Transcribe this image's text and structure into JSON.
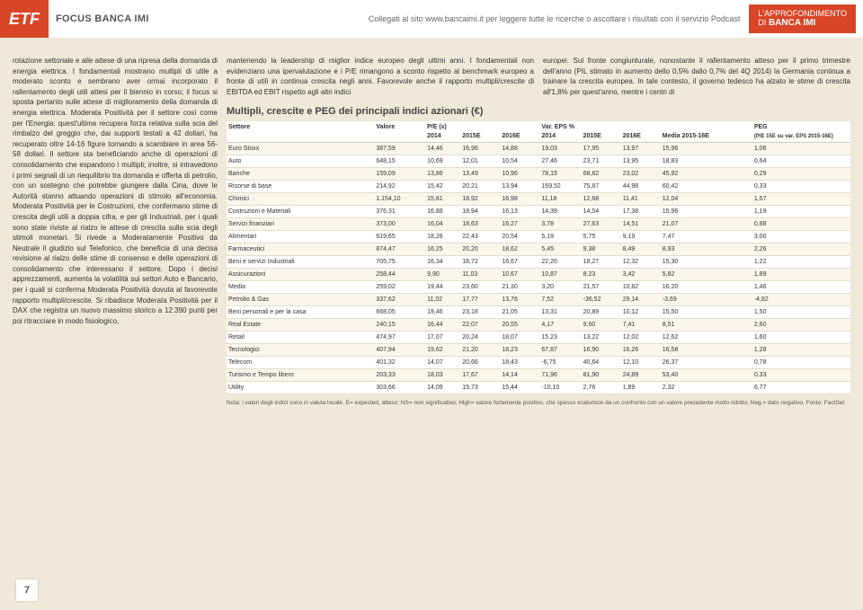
{
  "header": {
    "logo": "ETF",
    "focus": "FOCUS BANCA IMI",
    "mid": "Collegati al sito www.bancaimi.it per leggere tutte le ricerche o ascoltare i risultati con il servizio Podcast",
    "right1": "L'APPROFONDIMENTO",
    "right2": "DI",
    "right3": "BANCA IMI"
  },
  "pageNumber": "7",
  "body": {
    "left": "rotazione settoriale e alle attese di una ripresa della domanda di energia elettrica. I fondamentali mostrano multipli di utile a moderato sconto e sembrano aver ormai incorporato il rallentamento degli utili attesi per il biennio in corso; il focus si sposta pertanto sulle attese di miglioramento della domanda di energia elettrica. Moderata Positività per il settore così come per l'Energia: quest'ultima recupera forza relativa sulla scia del rimbalzo del greggio che, dai supporti testati a 42 dollari, ha recuperato oltre 14-16 figure tornando a scambiare in area 56-58 dollari. Il settore sta beneficiando anche di operazioni di consolidamento che espandono i multipli; inoltre, si intravedono i primi segnali di un riequilibrio tra domanda e offerta di petrolio, con un sostegno che potrebbe giungere dalla Cina, dove le Autorità stanno attuando operazioni di stimolo all'economia. Moderata Positività per le Costruzioni, che confermano stime di crescita degli utili a doppia cifra, e per gli Industriali, per i quali sono state riviste al rialzo le attese di crescita sulla scia degli stimoli monetari. Si rivede a Moderatamente Positivo da Neutrale il giudizio sul Telefonico, che beneficia di una decisa revisione al rialzo delle stime di consenso e delle operazioni di consolidamento che interessano il settore. Dopo i decisi apprezzamenti, aumenta la volatilità sui settori Auto e Bancario, per i quali si conferma Moderata Positività dovuta al favorevole rapporto multipli/crescite.\nSi ribadisce Moderata Positività per il DAX che registra un nuovo massimo storico a 12.390 punti per poi ritracciare in modo fisiologico,",
    "mid": "mantenendo la leadership di miglior indice europeo degli ultimi anni. I fondamentali non evidenziano una ipervalutazione e i P/E rimangono a sconto rispetto al benchmark europeo a fronte di utili in continua crescita negli anni. Favorevole anche il rapporto multipli/crescite di EBITDA ed EBIT rispetto agli altri indici",
    "right": "europei. Sul fronte congiunturale, nonostante il rallentamento atteso per il primo trimestre dell'anno (PIL stimato in aumento dello 0,5% dallo 0,7% del 4Q 2014) la Germania continua a trainare la crescita europea. In tale contesto, il governo tedesco ha alzato le stime di crescita all'1,8% per quest'anno, mentre i centri di"
  },
  "table": {
    "title": "Multipli, crescite e PEG dei principali indici azionari (€)",
    "group1": "Settore",
    "group2": "Valore",
    "group3": "P/E (x)",
    "group4": "Var. EPS %",
    "group5": "PEG",
    "cols": [
      "",
      "",
      "2014",
      "2015E",
      "2016E",
      "2014",
      "2015E",
      "2016E",
      "Media 2015-16E",
      "(P/E 15E su var. EPS 2015-16E)"
    ],
    "rows": [
      [
        "Euro Stoxx",
        "387,59",
        "14,46",
        "16,96",
        "14,88",
        "19,03",
        "17,95",
        "13,97",
        "15,96",
        "1,06"
      ],
      [
        "Auto",
        "648,15",
        "10,69",
        "12,01",
        "10,54",
        "27,46",
        "23,71",
        "13,95",
        "18,83",
        "0,64"
      ],
      [
        "Banche",
        "159,09",
        "13,86",
        "13,49",
        "10,96",
        "78,15",
        "68,82",
        "23,02",
        "45,92",
        "0,29"
      ],
      [
        "Risorse di base",
        "214,92",
        "15,42",
        "20,21",
        "13,94",
        "169,52",
        "75,87",
        "44,98",
        "60,42",
        "0,33"
      ],
      [
        "Chimici",
        "1.154,10",
        "15,81",
        "18,92",
        "16,98",
        "11,18",
        "12,68",
        "11,41",
        "12,04",
        "1,57"
      ],
      [
        "Costruzioni e Materiali",
        "376,31",
        "16,88",
        "18,94",
        "16,13",
        "14,39",
        "14,54",
        "17,38",
        "15,96",
        "1,19"
      ],
      [
        "Servizi finanziari",
        "373,00",
        "16,04",
        "18,63",
        "16,27",
        "3,78",
        "27,63",
        "14,51",
        "21,07",
        "0,88"
      ],
      [
        "Alimentari",
        "619,65",
        "18,26",
        "22,43",
        "20,54",
        "5,19",
        "5,75",
        "9,19",
        "7,47",
        "3,00"
      ],
      [
        "Farmaceutici",
        "874,47",
        "16,25",
        "20,20",
        "18,62",
        "5,45",
        "9,38",
        "8,49",
        "8,93",
        "2,26"
      ],
      [
        "Beni e servizi Industriali",
        "705,75",
        "16,34",
        "18,72",
        "16,67",
        "22,20",
        "18,27",
        "12,32",
        "15,30",
        "1,22"
      ],
      [
        "Assicurazioni",
        "258,44",
        "9,90",
        "11,03",
        "10,67",
        "10,87",
        "8,23",
        "3,42",
        "5,82",
        "1,89"
      ],
      [
        "Media",
        "259,02",
        "19,44",
        "23,60",
        "21,30",
        "3,20",
        "21,57",
        "10,82",
        "16,20",
        "1,46"
      ],
      [
        "Petrolio & Gas",
        "337,62",
        "11,02",
        "17,77",
        "13,76",
        "7,52",
        "-36,52",
        "29,14",
        "-3,69",
        "-4,82"
      ],
      [
        "Beni personali e per la casa",
        "668,05",
        "19,46",
        "23,18",
        "21,05",
        "13,31",
        "20,89",
        "10,12",
        "15,50",
        "1,50"
      ],
      [
        "Real Estate",
        "240,15",
        "16,44",
        "22,07",
        "20,55",
        "4,17",
        "9,60",
        "7,41",
        "8,51",
        "2,60"
      ],
      [
        "Retail",
        "474,97",
        "17,07",
        "20,24",
        "18,07",
        "15,23",
        "13,22",
        "12,02",
        "12,62",
        "1,60"
      ],
      [
        "Tecnologici",
        "407,94",
        "19,62",
        "21,20",
        "18,23",
        "67,87",
        "16,90",
        "16,26",
        "16,58",
        "1,28"
      ],
      [
        "Telecom",
        "401,32",
        "14,07",
        "20,66",
        "18,43",
        "-6,75",
        "40,64",
        "12,10",
        "26,37",
        "0,78"
      ],
      [
        "Turismo e Tempo libero",
        "203,33",
        "18,03",
        "17,67",
        "14,14",
        "71,96",
        "81,90",
        "24,89",
        "53,40",
        "0,33"
      ],
      [
        "Utility",
        "303,66",
        "14,09",
        "15,73",
        "15,44",
        "-10,10",
        "2,76",
        "1,89",
        "2,32",
        "6,77"
      ]
    ],
    "note": "Nota: i valori degli indici sono in valuta locale. E= expected, atteso; NS= non significativo; High= valore fortemente positivo, che spesso scaturisce da un confronto con un valore precedente molto ridotto; Neg.= dato negativo. Fonte: FactSet"
  }
}
